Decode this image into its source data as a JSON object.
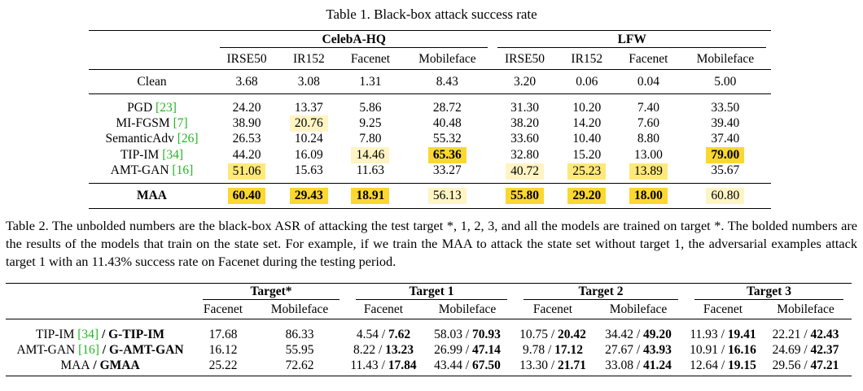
{
  "table1": {
    "caption": "Table 1. Black-box attack success rate",
    "groups": [
      "CelebA-HQ",
      "LFW"
    ],
    "columns": [
      "IRSE50",
      "IR152",
      "Facenet",
      "Mobileface",
      "IRSE50",
      "IR152",
      "Facenet",
      "Mobileface"
    ],
    "rows": [
      {
        "method": "Clean",
        "ref": "",
        "values": [
          "3.68",
          "3.08",
          "1.31",
          "8.43",
          "3.20",
          "0.06",
          "0.04",
          "5.00"
        ]
      },
      {
        "method": "PGD ",
        "ref": "[23]",
        "values": [
          "24.20",
          "13.37",
          "5.86",
          "28.72",
          "31.30",
          "10.20",
          "7.40",
          "33.50"
        ]
      },
      {
        "method": "MI-FGSM ",
        "ref": "[7]",
        "values": [
          "38.90",
          "20.76",
          "9.25",
          "40.48",
          "38.20",
          "14.20",
          "7.60",
          "39.40"
        ]
      },
      {
        "method": "SemanticAdv ",
        "ref": "[26]",
        "values": [
          "26.53",
          "10.24",
          "7.80",
          "55.32",
          "33.60",
          "10.40",
          "8.80",
          "37.40"
        ]
      },
      {
        "method": "TIP-IM ",
        "ref": "[34]",
        "values": [
          "44.20",
          "16.09",
          "14.46",
          "65.36",
          "32.80",
          "15.20",
          "13.00",
          "79.00"
        ]
      },
      {
        "method": "AMT-GAN ",
        "ref": "[16]",
        "values": [
          "51.06",
          "15.63",
          "11.63",
          "33.27",
          "40.72",
          "25.23",
          "13.89",
          "35.67"
        ]
      },
      {
        "method": "MAA",
        "ref": "",
        "values": [
          "60.40",
          "29.43",
          "18.91",
          "56.13",
          "55.80",
          "29.20",
          "18.00",
          "60.80"
        ]
      }
    ]
  },
  "table2": {
    "caption": "Table 2. The unbolded numbers are the black-box ASR of attacking the test target *, 1, 2, 3, and all the models are trained on target *. The bolded numbers are the results of the models that train on the state set. For example, if we train the MAA to attack the state set without target 1, the adversarial examples attack target 1 with an 11.43% success rate on Facenet during the testing period.",
    "groups": [
      "Target*",
      "Target 1",
      "Target 2",
      "Target 3"
    ],
    "columns": [
      "Facenet",
      "Mobileface",
      "Facenet",
      "Mobileface",
      "Facenet",
      "Mobileface",
      "Facenet",
      "Mobileface"
    ],
    "rows": [
      {
        "name": "TIP-IM ",
        "ref": "[34]",
        "gen": " / G-TIP-IM",
        "plain": [
          "17.68",
          "86.33",
          "4.54",
          "58.03",
          "10.75",
          "34.42",
          "11.93",
          "22.21"
        ],
        "bold": [
          "",
          "",
          "7.62",
          "70.93",
          "20.42",
          "49.20",
          "19.41",
          "42.43"
        ]
      },
      {
        "name": "AMT-GAN ",
        "ref": "[16]",
        "gen": " / G-AMT-GAN",
        "plain": [
          "16.12",
          "55.95",
          "8.22",
          "26.99",
          "9.78",
          "27.67",
          "10.91",
          "24.69"
        ],
        "bold": [
          "",
          "",
          "13.23",
          "47.14",
          "17.12",
          "43.93",
          "16.16",
          "42.37"
        ]
      },
      {
        "name": "MAA",
        "ref": "",
        "gen": " / GMAA",
        "plain": [
          "25.22",
          "72.62",
          "11.43",
          "43.44",
          "13.30",
          "33.08",
          "12.64",
          "29.56"
        ],
        "bold": [
          "",
          "",
          "17.84",
          "67.50",
          "21.71",
          "41.24",
          "19.15",
          "47.21"
        ]
      }
    ]
  },
  "colors": {
    "highlight_light": "#fff4c4",
    "highlight_mid": "#fde97a",
    "highlight_strong": "#fbd731",
    "citation": "#22b522"
  }
}
